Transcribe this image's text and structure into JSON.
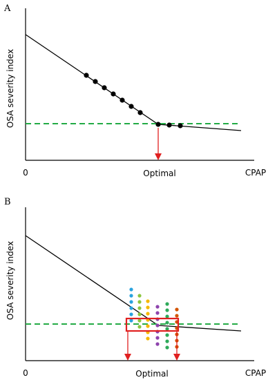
{
  "panels": [
    {
      "id": "a",
      "panel_label": "A",
      "ylabel": "OSA severity index",
      "x_origin_label": "0",
      "x_axis_label": "CPAP",
      "optimal_label": "Optimal",
      "colors": {
        "curve": "#000000",
        "threshold": "#22aa44",
        "arrow": "#e02020",
        "points": "#000000"
      },
      "point_count": 10
    },
    {
      "id": "b",
      "panel_label": "B",
      "ylabel": "OSA severity index",
      "x_origin_label": "0",
      "x_axis_label": "CPAP",
      "optimal_label": "Optimal",
      "colors": {
        "curve": "#000000",
        "threshold": "#22aa44",
        "arrow": "#e02020",
        "range_box": "#e02020",
        "dot_columns": [
          "#29a3df",
          "#8cc63f",
          "#f5b800",
          "#8e44ad",
          "#2eaa5a",
          "#d35400"
        ]
      },
      "dot_column_count": 6
    }
  ]
}
